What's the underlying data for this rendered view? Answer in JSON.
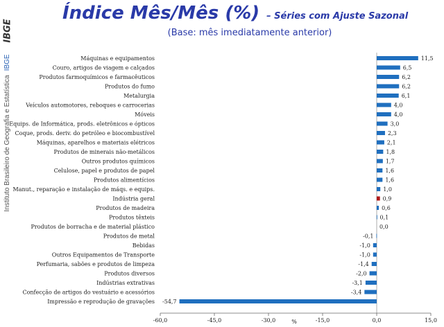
{
  "sidebar": {
    "logo": "IBGE",
    "institution": "Instituto Brasileiro de Geografia e Estatística",
    "institution_short": "IBGE"
  },
  "header": {
    "title": "Índice Mês/Mês (%)",
    "title_suffix": "– Séries com Ajuste Sazonal",
    "subtitle": "(Base: mês imediatamente anterior)"
  },
  "colors": {
    "bar": "#1f6fbf",
    "highlight": "#b01818",
    "title": "#2a3aa8"
  },
  "chart_data": {
    "type": "bar",
    "orientation": "horizontal",
    "categories": [
      "Máquinas e equipamentos",
      "Couro, artigos de viagem e calçados",
      "Produtos farmoquímicos e farmacêuticos",
      "Produtos do fumo",
      "Metalurgia",
      "Veículos automotores, reboques e carrocerias",
      "Móveis",
      "Equips. de Informática, prods. eletrônicos e ópticos",
      "Coque, prods. deriv. do petróleo e biocombustível",
      "Máquinas, aparelhos e materiais elétricos",
      "Produtos de minerais não-metálicos",
      "Outros produtos químicos",
      "Celulose, papel e produtos de papel",
      "Produtos alimentícios",
      "Manut., reparação e instalação de máqs. e equips.",
      "Indústria geral",
      "Produtos de madeira",
      "Produtos têxteis",
      "Produtos de borracha e de material plástico",
      "Produtos de metal",
      "Bebidas",
      "Outros Equipamentos de Transporte",
      "Perfumaria, sabões e produtos de limpeza",
      "Produtos diversos",
      "Indústrias extrativas",
      "Confecção de artigos do vestuário e acessórios",
      "Impressão e reprodução de gravações"
    ],
    "values": [
      11.5,
      6.5,
      6.2,
      6.2,
      6.1,
      4.0,
      4.0,
      3.0,
      2.3,
      2.1,
      1.8,
      1.7,
      1.6,
      1.6,
      1.0,
      0.9,
      0.6,
      0.1,
      0.0,
      -0.1,
      -1.0,
      -1.0,
      -1.4,
      -2.0,
      -3.1,
      -3.4,
      -54.7
    ],
    "value_labels": [
      "11,5",
      "6,5",
      "6,2",
      "6,2",
      "6,1",
      "4,0",
      "4,0",
      "3,0",
      "2,3",
      "2,1",
      "1,8",
      "1,7",
      "1,6",
      "1,6",
      "1,0",
      "0,9",
      "0,6",
      "0,1",
      "0,0",
      "-0,1",
      "-1,0",
      "-1,0",
      "-1,4",
      "-2,0",
      "-3,1",
      "-3,4",
      "-54,7"
    ],
    "highlight_category": "Indústria geral",
    "xlim": [
      -60,
      15
    ],
    "xticks": [
      -60,
      -45,
      -30,
      -15,
      0,
      15
    ],
    "xtick_labels": [
      "-60,0",
      "-45,0",
      "-30,0",
      "-15,0",
      "0,0",
      "15,0"
    ],
    "xlabel": "%",
    "ylabel": "",
    "grid": false,
    "legend": "none"
  }
}
